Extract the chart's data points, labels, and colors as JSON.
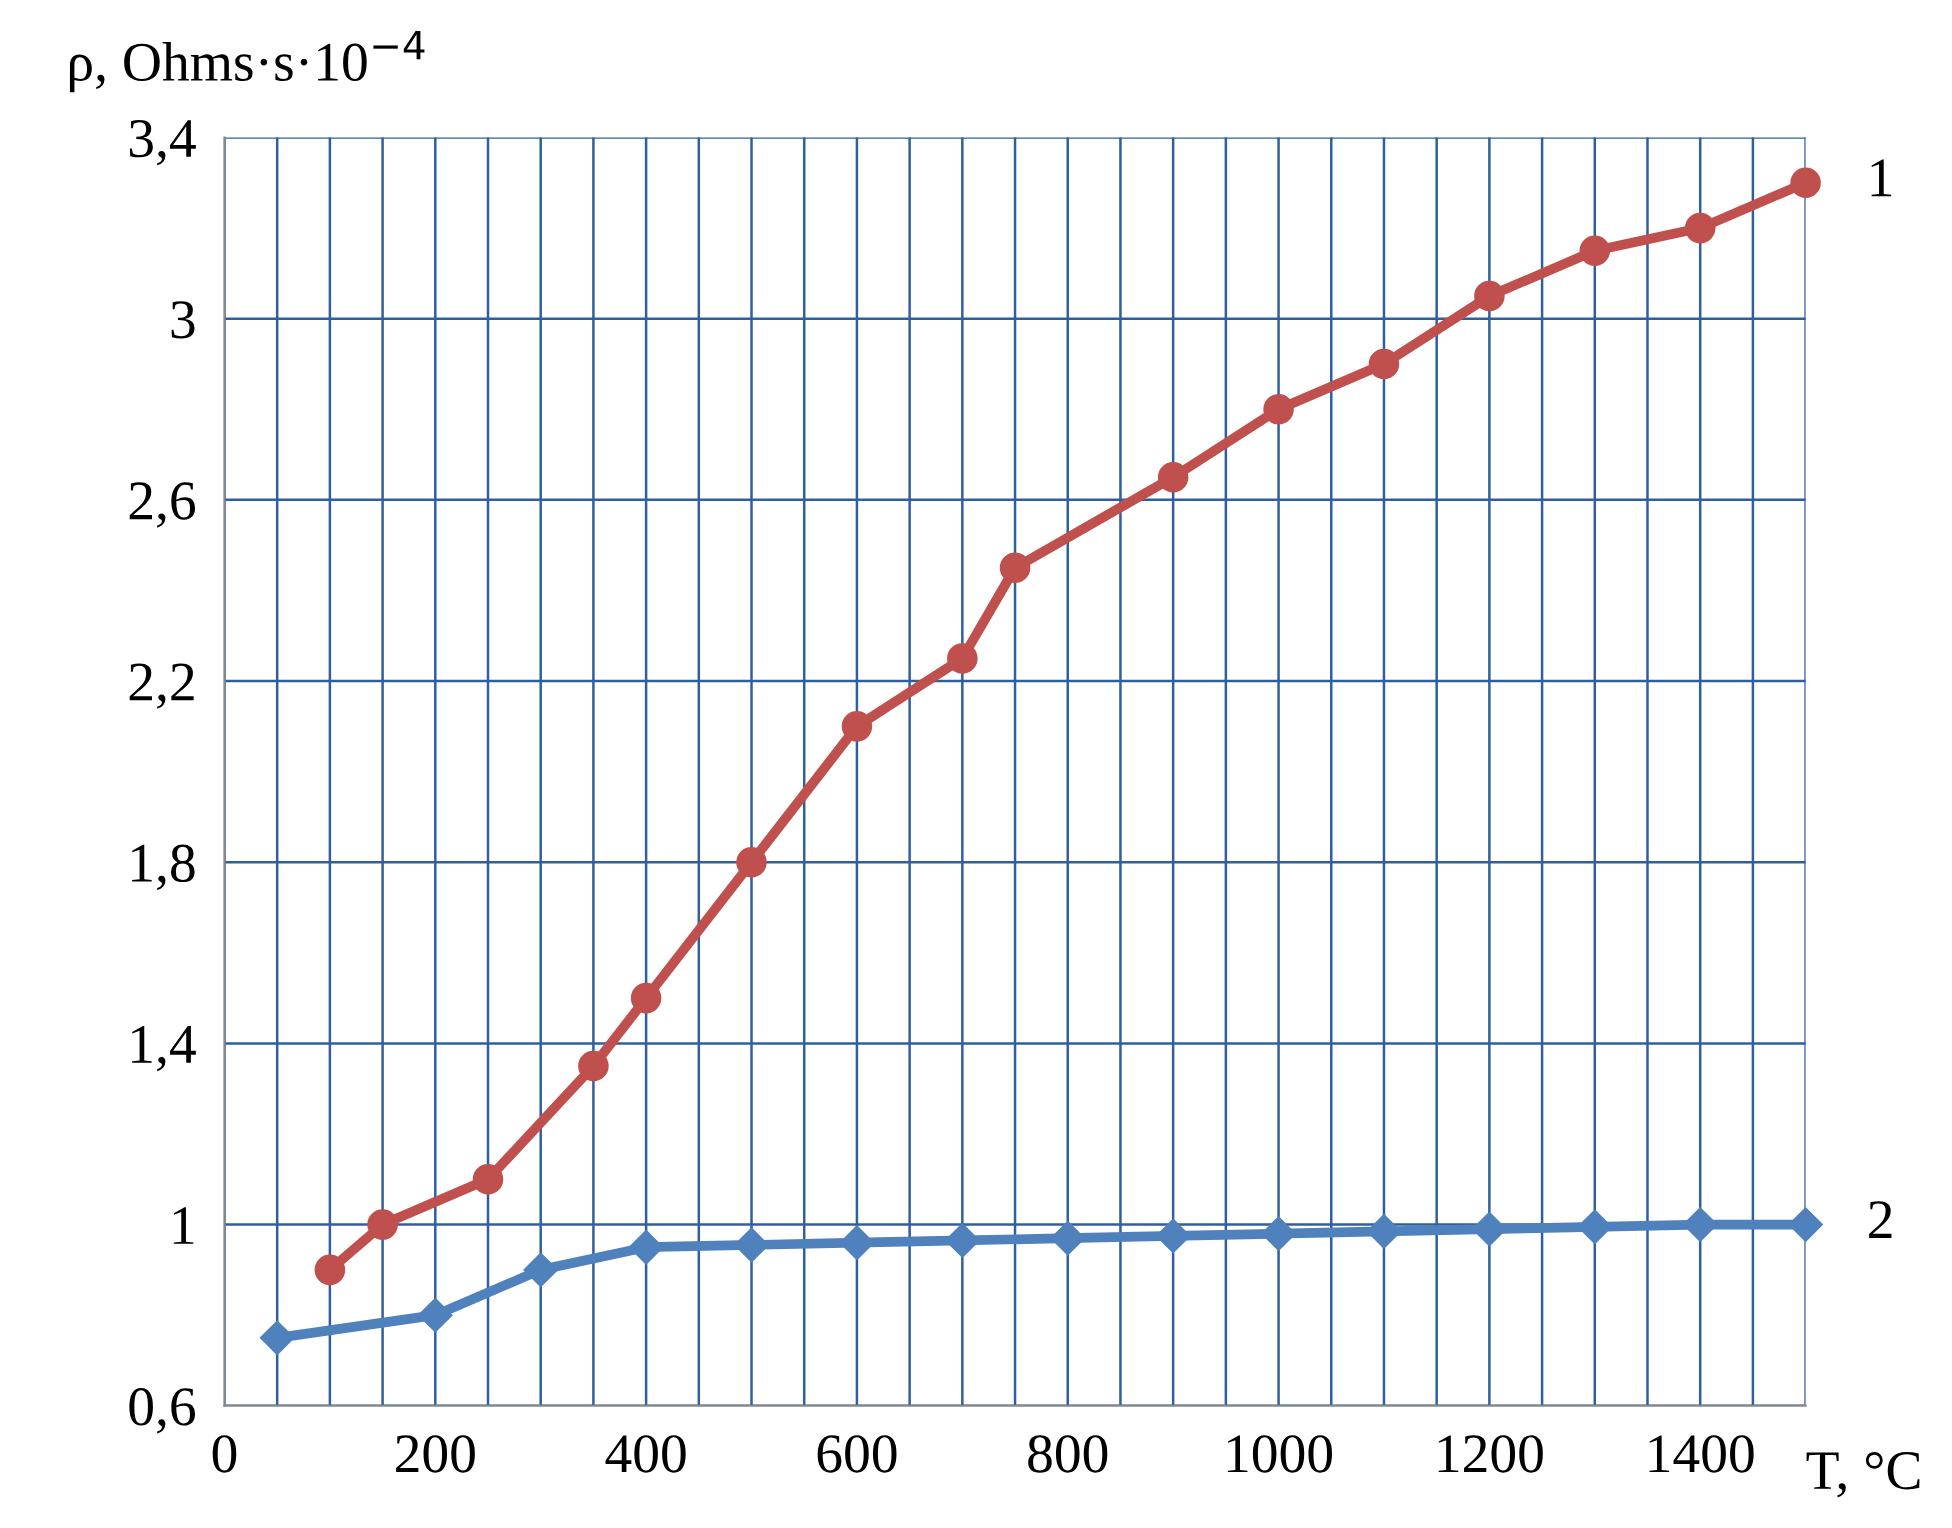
{
  "chart_data": {
    "type": "line",
    "xlabel": "T, °C",
    "ylabel": "ρ, Ohms·s·10$^{−4}$",
    "xlim": [
      0,
      1500
    ],
    "ylim": [
      0.6,
      3.4
    ],
    "xticks": [
      0,
      {
        "value": 50,
        "label": null
      },
      {
        "value": 100,
        "label": null
      },
      {
        "value": 150,
        "label": null
      },
      200,
      {
        "value": 250,
        "label": null
      },
      {
        "value": 300,
        "label": null
      },
      {
        "value": 350,
        "label": null
      },
      400,
      {
        "value": 450,
        "label": null
      },
      {
        "value": 500,
        "label": null
      },
      {
        "value": 550,
        "label": null
      },
      600,
      {
        "value": 650,
        "label": null
      },
      {
        "value": 700,
        "label": null
      },
      {
        "value": 750,
        "label": null
      },
      800,
      {
        "value": 850,
        "label": null
      },
      {
        "value": 900,
        "label": null
      },
      {
        "value": 950,
        "label": null
      },
      1000,
      {
        "value": 1050,
        "label": null
      },
      {
        "value": 1100,
        "label": null
      },
      {
        "value": 1150,
        "label": null
      },
      1200,
      {
        "value": 1250,
        "label": null
      },
      {
        "value": 1300,
        "label": null
      },
      {
        "value": 1350,
        "label": null
      },
      1400,
      {
        "value": 1450,
        "label": null
      },
      {
        "value": 1500,
        "label": null
      }
    ],
    "yticks": [
      {
        "value": 0.6,
        "label": "0,6"
      },
      {
        "value": 1,
        "label": "1"
      },
      {
        "value": 1.4,
        "label": "1,4"
      },
      {
        "value": 1.8,
        "label": "1,8"
      },
      {
        "value": 2.2,
        "label": "2,2"
      },
      {
        "value": 2.6,
        "label": "2,6"
      },
      {
        "value": 3,
        "label": "3"
      },
      {
        "value": 3.4,
        "label": "3,4"
      }
    ],
    "grid": true,
    "legend": false,
    "line_style": "solid",
    "series": [
      {
        "name": "1",
        "color": "#c0504d",
        "marker": "circle",
        "x": [
          100,
          150,
          250,
          350,
          400,
          500,
          600,
          700,
          750,
          900,
          1000,
          1100,
          1200,
          1300,
          1400,
          1500
        ],
        "values": [
          0.9,
          1.0,
          1.1,
          1.35,
          1.5,
          1.8,
          2.1,
          2.25,
          2.45,
          2.65,
          2.8,
          2.9,
          3.05,
          3.15,
          3.2,
          3.3
        ]
      },
      {
        "name": "2",
        "color": "#4f81bd",
        "marker": "diamond",
        "x": [
          50,
          200,
          300,
          400,
          500,
          600,
          700,
          800,
          900,
          1000,
          1100,
          1200,
          1300,
          1400,
          1500
        ],
        "values": [
          0.75,
          0.8,
          0.9,
          0.95,
          0.955,
          0.96,
          0.965,
          0.97,
          0.975,
          0.98,
          0.985,
          0.99,
          0.995,
          1.0,
          1.0
        ]
      }
    ]
  }
}
